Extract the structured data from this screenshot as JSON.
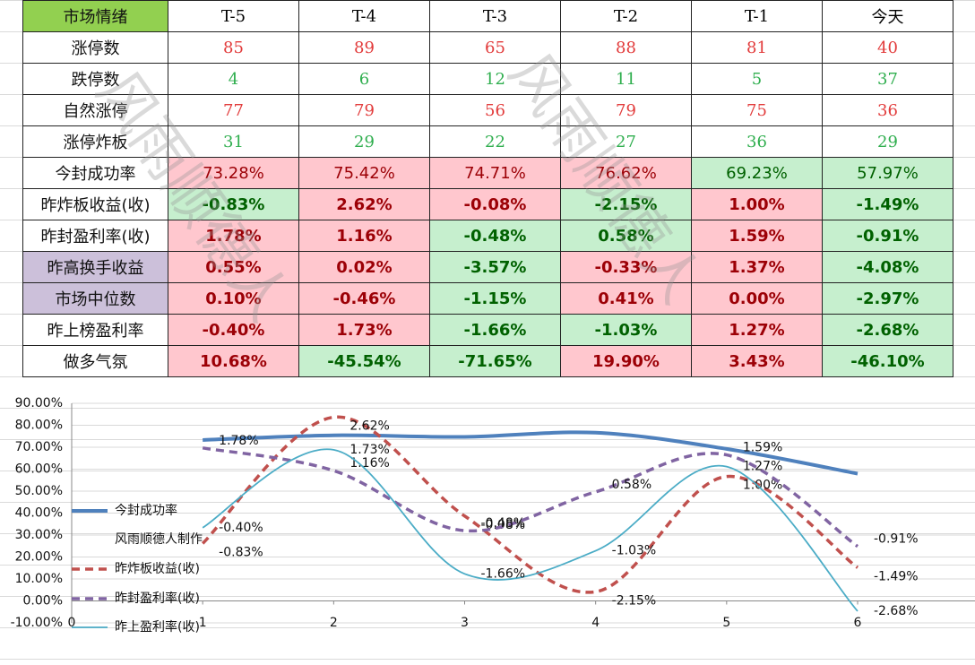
{
  "table": {
    "header": [
      "市场情绪",
      "T-5",
      "T-4",
      "T-3",
      "T-2",
      "T-1",
      "今天"
    ],
    "rows": [
      {
        "label": "涨停数",
        "cells": [
          "85",
          "89",
          "65",
          "88",
          "81",
          "40"
        ],
        "text_color": "#e23b3b"
      },
      {
        "label": "跌停数",
        "cells": [
          "4",
          "6",
          "12",
          "11",
          "5",
          "37"
        ],
        "text_color": "#2fae4e"
      },
      {
        "label": "自然涨停",
        "cells": [
          "77",
          "79",
          "56",
          "79",
          "75",
          "36"
        ],
        "text_color": "#e23b3b"
      },
      {
        "label": "涨停炸板",
        "cells": [
          "31",
          "29",
          "22",
          "27",
          "36",
          "29"
        ],
        "text_color": "#2fae4e"
      },
      {
        "label": "今封成功率",
        "cells": [
          "73.28%",
          "75.42%",
          "74.71%",
          "76.62%",
          "69.23%",
          "57.97%"
        ],
        "fills": [
          "#ffc7ce",
          "#ffc7ce",
          "#ffc7ce",
          "#ffc7ce",
          "#c6efce",
          "#c6efce"
        ],
        "bold": false
      },
      {
        "label": "昨炸板收益(收)",
        "cells": [
          "-0.83%",
          "2.62%",
          "-0.08%",
          "-2.15%",
          "1.00%",
          "-1.49%"
        ],
        "fills": [
          "#c6efce",
          "#ffc7ce",
          "#ffc7ce",
          "#c6efce",
          "#ffc7ce",
          "#c6efce"
        ],
        "bold": true
      },
      {
        "label": "昨封盈利率(收)",
        "cells": [
          "1.78%",
          "1.16%",
          "-0.48%",
          "0.58%",
          "1.59%",
          "-0.91%"
        ],
        "fills": [
          "#ffc7ce",
          "#ffc7ce",
          "#c6efce",
          "#c6efce",
          "#ffc7ce",
          "#c6efce"
        ],
        "bold": true
      },
      {
        "label": "昨高换手收益",
        "cells": [
          "0.55%",
          "0.02%",
          "-3.57%",
          "-0.33%",
          "1.37%",
          "-4.08%"
        ],
        "fills": [
          "#ffc7ce",
          "#ffc7ce",
          "#c6efce",
          "#ffc7ce",
          "#ffc7ce",
          "#c6efce"
        ],
        "bold": true,
        "label_fill": "#ccc0da"
      },
      {
        "label": "市场中位数",
        "cells": [
          "0.10%",
          "-0.46%",
          "-1.15%",
          "0.41%",
          "0.00%",
          "-2.97%"
        ],
        "fills": [
          "#ffc7ce",
          "#ffc7ce",
          "#c6efce",
          "#ffc7ce",
          "#ffc7ce",
          "#c6efce"
        ],
        "bold": true,
        "label_fill": "#ccc0da"
      },
      {
        "label": "昨上榜盈利率",
        "cells": [
          "-0.40%",
          "1.73%",
          "-1.66%",
          "-1.03%",
          "1.27%",
          "-2.68%"
        ],
        "fills": [
          "#ffc7ce",
          "#ffc7ce",
          "#c6efce",
          "#c6efce",
          "#ffc7ce",
          "#c6efce"
        ],
        "bold": true
      },
      {
        "label": "做多气氛",
        "cells": [
          "10.68%",
          "-45.54%",
          "-71.65%",
          "19.90%",
          "3.43%",
          "-46.10%"
        ],
        "fills": [
          "#ffc7ce",
          "#c6efce",
          "#c6efce",
          "#ffc7ce",
          "#ffc7ce",
          "#c6efce"
        ],
        "bold": true
      }
    ],
    "watermark": "风雨顺德人"
  },
  "chart_data": {
    "type": "line",
    "x": [
      1,
      2,
      3,
      4,
      5,
      6
    ],
    "xlim": [
      0,
      6
    ],
    "xticks": [
      0,
      1,
      2,
      3,
      4,
      5,
      6
    ],
    "ylim": [
      -10,
      90
    ],
    "yticks": [
      {
        "value": -10,
        "label": "-10.00%"
      },
      {
        "value": 0,
        "label": "0.00%"
      },
      {
        "value": 10,
        "label": "10.00%"
      },
      {
        "value": 20,
        "label": "20.00%"
      },
      {
        "value": 30,
        "label": "30.00%"
      },
      {
        "value": 40,
        "label": "40.00%"
      },
      {
        "value": 50,
        "label": "50.00%"
      },
      {
        "value": 60,
        "label": "60.00%"
      },
      {
        "value": 70,
        "label": "70.00%"
      },
      {
        "value": 80,
        "label": "80.00%"
      },
      {
        "value": 90,
        "label": "90.00%"
      }
    ],
    "y2lim": [
      -3,
      3
    ],
    "grid": true,
    "legend_note": "风雨顺德人制作",
    "series": [
      {
        "name": "今封成功率",
        "color": "#4f81bd",
        "width": 4,
        "dash": "none",
        "values": [
          73.28,
          75.42,
          74.71,
          76.62,
          69.23,
          57.97
        ]
      },
      {
        "name": "昨炸板收益(收)",
        "color": "#c0504d",
        "width": 3.5,
        "dash": "9 6",
        "axis": "y2",
        "values": [
          -0.83,
          2.62,
          -0.08,
          -2.15,
          1.0,
          -1.49
        ],
        "value_labels": [
          "-0.83%",
          "2.62%",
          "-0.08%",
          "-2.15%",
          "1.00%",
          "-1.49%"
        ]
      },
      {
        "name": "昨封盈利率(收)",
        "color": "#8064a2",
        "width": 3.5,
        "dash": "9 6",
        "axis": "y2",
        "values": [
          1.78,
          1.16,
          -0.48,
          0.58,
          1.59,
          -0.91
        ],
        "value_labels": [
          "1.78%",
          "1.16%",
          "-0.48%",
          "0.58%",
          "1.59%",
          "-0.91%"
        ]
      },
      {
        "name": "昨上盈利率(收)",
        "color": "#4bacc6",
        "width": 1.8,
        "dash": "none",
        "axis": "y2",
        "values": [
          -0.4,
          1.73,
          -1.66,
          -1.03,
          1.27,
          -2.68
        ],
        "value_labels": [
          "-0.40%",
          "1.73%",
          "-1.66%",
          "-1.03%",
          "1.27%",
          "-2.68%"
        ]
      }
    ]
  }
}
